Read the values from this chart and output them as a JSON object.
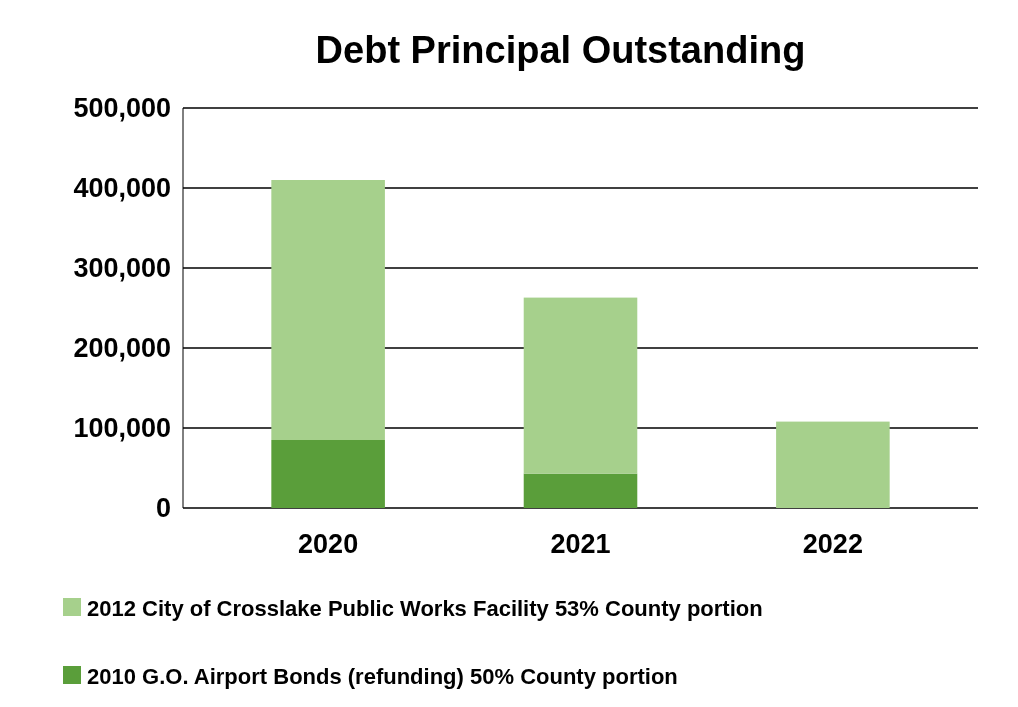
{
  "chart_data": {
    "type": "bar",
    "title": "Debt Principal Outstanding",
    "categories": [
      "2020",
      "2021",
      "2022"
    ],
    "stacked": true,
    "series": [
      {
        "name": "2010 G.O. Airport Bonds (refunding) 50% County portion",
        "color": "#5a9e3a",
        "values": [
          85000,
          43000,
          0
        ]
      },
      {
        "name": "2012 City of Crosslake Public Works Facility 53% County portion",
        "color": "#a6d08c",
        "values": [
          325000,
          220000,
          108000
        ]
      }
    ],
    "ylim": [
      0,
      500000
    ],
    "yticks": [
      {
        "value": 0,
        "label": "0"
      },
      {
        "value": 100000,
        "label": "100,000"
      },
      {
        "value": 200000,
        "label": "200,000"
      },
      {
        "value": 300000,
        "label": "300,000"
      },
      {
        "value": 400000,
        "label": "400,000"
      },
      {
        "value": 500000,
        "label": "500,000"
      }
    ],
    "grid": "y",
    "legend": "bottom"
  }
}
